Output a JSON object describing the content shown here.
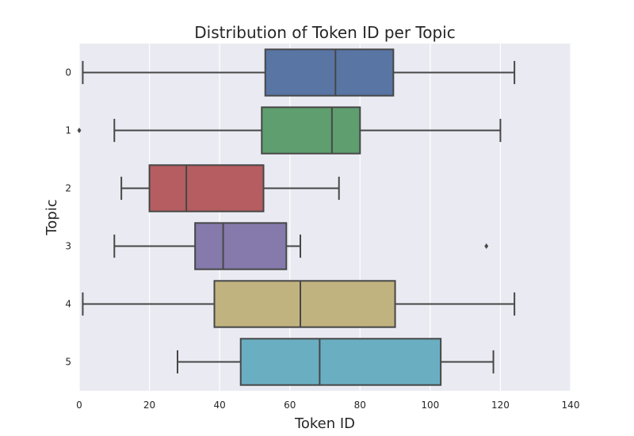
{
  "chart_data": {
    "type": "box",
    "orientation": "horizontal",
    "title": "Distribution of Token ID per Topic",
    "xlabel": "Token ID",
    "ylabel": "Topic",
    "xlim": [
      0,
      140
    ],
    "x_ticks": [
      "0",
      "20",
      "40",
      "60",
      "80",
      "100",
      "120",
      "140"
    ],
    "grid": true,
    "background_color": "#eaeaf2",
    "categories": [
      "0",
      "1",
      "2",
      "3",
      "4",
      "5"
    ],
    "boxes": [
      {
        "category": "0",
        "whisker_low": 1,
        "q1": 53,
        "median": 73,
        "q3": 89.5,
        "whisker_high": 124,
        "outliers": [],
        "color": "#5875a4"
      },
      {
        "category": "1",
        "whisker_low": 10,
        "q1": 52,
        "median": 72,
        "q3": 80,
        "whisker_high": 120,
        "outliers": [
          0
        ],
        "color": "#5f9e6e"
      },
      {
        "category": "2",
        "whisker_low": 12,
        "q1": 20,
        "median": 30.5,
        "q3": 52.5,
        "whisker_high": 74,
        "outliers": [],
        "color": "#b55d60"
      },
      {
        "category": "3",
        "whisker_low": 10,
        "q1": 33,
        "median": 41,
        "q3": 59,
        "whisker_high": 63,
        "outliers": [
          116
        ],
        "color": "#857aab"
      },
      {
        "category": "4",
        "whisker_low": 1,
        "q1": 38.5,
        "median": 63,
        "q3": 90,
        "whisker_high": 124,
        "outliers": [],
        "color": "#c1b37f"
      },
      {
        "category": "5",
        "whisker_low": 28,
        "q1": 46,
        "median": 68.5,
        "q3": 103,
        "whisker_high": 118,
        "outliers": [],
        "color": "#6aaec2"
      }
    ]
  }
}
